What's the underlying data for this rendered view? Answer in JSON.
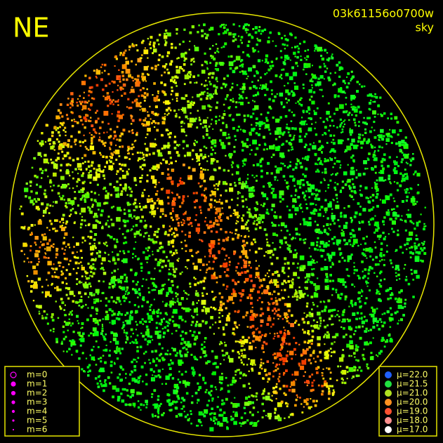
{
  "header": {
    "direction": "NE",
    "frame_id": "03k61156o0700w",
    "mode": "sky"
  },
  "magnitude_legend": [
    "m=0",
    "m=1",
    "m=2",
    "m=3",
    "m=4",
    "m=5",
    "m=6"
  ],
  "brightness_legend": [
    "μ=22.0",
    "μ=21.5",
    "μ=21.0",
    "μ=20.0",
    "μ=19.0",
    "μ=18.0",
    "μ=17.0"
  ]
}
